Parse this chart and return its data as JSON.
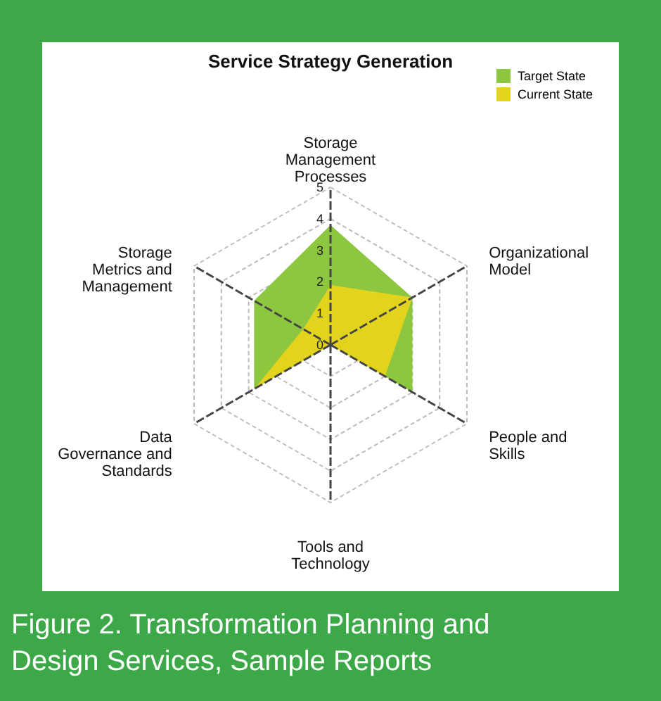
{
  "chart_data": {
    "type": "radar",
    "title": "Service Strategy Generation",
    "categories": [
      "Storage Management Processes",
      "Organizational Model",
      "People and Skills",
      "Tools and Technology",
      "Data Governance and Standards",
      "Storage Metrics and Management"
    ],
    "series": [
      {
        "name": "Target State",
        "color": "#8dc63f",
        "values": [
          3.8,
          3,
          3,
          0,
          2.8,
          2.8
        ]
      },
      {
        "name": "Current State",
        "color": "#e2d31c",
        "values": [
          1.9,
          3,
          2,
          0,
          2.8,
          1
        ]
      }
    ],
    "ylim": [
      0,
      5
    ],
    "yticks": [
      0,
      1,
      2,
      3,
      4,
      5
    ],
    "grid": true,
    "legend": "top right",
    "annotations": [
      "Figure 2. Transformation Planning and Design Services, Sample Reports"
    ]
  }
}
